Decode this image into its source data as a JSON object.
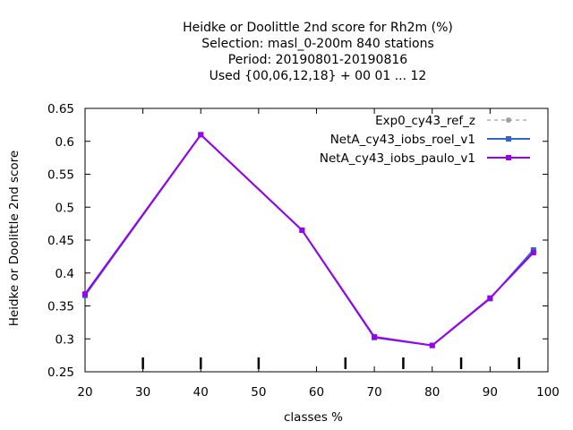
{
  "chart_data": {
    "type": "line",
    "title_lines": [
      "Heidke or Doolittle 2nd score  for Rh2m (%)",
      "Selection: masl_0-200m    840 stations",
      "Period: 20190801-20190816",
      "Used {00,06,12,18} + 00 01 ... 12"
    ],
    "xlabel": "classes %",
    "ylabel": "Heidke or Doolittle 2nd score",
    "xlim": [
      20,
      100
    ],
    "ylim": [
      0.25,
      0.65
    ],
    "xticks": [
      "20",
      "30",
      "40",
      "50",
      "60",
      "70",
      "80",
      "90",
      "100"
    ],
    "yticks": [
      "0.25",
      "0.3",
      "0.35",
      "0.4",
      "0.45",
      "0.5",
      "0.55",
      "0.6",
      "0.65"
    ],
    "class_markers": [
      30,
      40,
      50,
      65,
      75,
      85,
      95
    ],
    "grid": false,
    "legend_position": "top-right",
    "series": [
      {
        "name": "Exp0_cy43_ref_z",
        "color": "#a0a0a0",
        "dashed": true,
        "marker": "circle",
        "x": [
          20,
          40,
          57.5,
          70,
          80,
          90,
          97.5
        ],
        "y": [
          0.367,
          0.61,
          0.465,
          0.302,
          0.29,
          0.361,
          0.433
        ]
      },
      {
        "name": "NetA_cy43_iobs_roel_v1",
        "color": "#3366cc",
        "dashed": false,
        "marker": "square",
        "x": [
          20,
          40,
          57.5,
          70,
          80,
          90,
          97.5
        ],
        "y": [
          0.366,
          0.61,
          0.465,
          0.302,
          0.29,
          0.361,
          0.435
        ]
      },
      {
        "name": "NetA_cy43_iobs_paulo_v1",
        "color": "#9900ee",
        "dashed": false,
        "marker": "square",
        "x": [
          20,
          40,
          57.5,
          70,
          80,
          90,
          97.5
        ],
        "y": [
          0.368,
          0.61,
          0.465,
          0.303,
          0.29,
          0.362,
          0.431
        ]
      }
    ]
  }
}
